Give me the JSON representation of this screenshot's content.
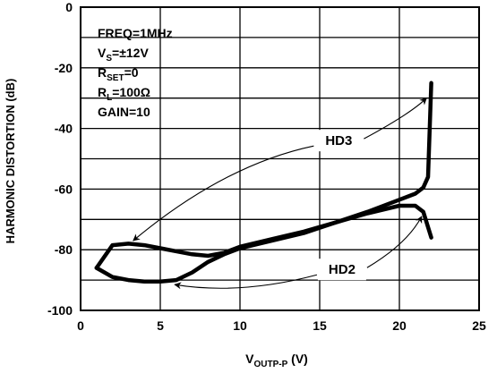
{
  "chart_data": {
    "type": "line",
    "ylabel": "HARMONIC DISTORTION (dB)",
    "xlabel": {
      "main": "V",
      "sub": "OUTP-P",
      "unit": " (V)"
    },
    "xlim": [
      0,
      25
    ],
    "ylim": [
      -100,
      0
    ],
    "xticks": [
      0,
      5,
      10,
      15,
      20,
      25
    ],
    "yticks": [
      0,
      -20,
      -40,
      -60,
      -80,
      -100
    ],
    "grid": true,
    "conditions": [
      {
        "main": "FREQ=1MHz"
      },
      {
        "main": "V",
        "sub": "S",
        "rest": "=±12V"
      },
      {
        "main": "R",
        "sub": "SET",
        "rest": "=0"
      },
      {
        "main": "R",
        "sub": "L",
        "rest": "=100Ω"
      },
      {
        "main": "GAIN=10"
      }
    ],
    "series": [
      {
        "name": "HD3",
        "points": [
          [
            1.0,
            -86.0
          ],
          [
            2.0,
            -78.5
          ],
          [
            3.0,
            -78.0
          ],
          [
            4.0,
            -78.5
          ],
          [
            5.0,
            -79.5
          ],
          [
            6.0,
            -80.5
          ],
          [
            7.0,
            -81.5
          ],
          [
            8.0,
            -82.0
          ],
          [
            9.0,
            -81.0
          ],
          [
            10.0,
            -79.0
          ],
          [
            12.0,
            -76.5
          ],
          [
            14.0,
            -74.0
          ],
          [
            16.0,
            -71.0
          ],
          [
            18.0,
            -67.5
          ],
          [
            20.0,
            -63.5
          ],
          [
            21.0,
            -61.5
          ],
          [
            21.5,
            -59.5
          ],
          [
            21.8,
            -56.0
          ],
          [
            22.0,
            -25.0
          ]
        ]
      },
      {
        "name": "HD2",
        "points": [
          [
            1.0,
            -86.0
          ],
          [
            2.0,
            -89.0
          ],
          [
            3.0,
            -90.0
          ],
          [
            4.0,
            -90.5
          ],
          [
            5.0,
            -90.5
          ],
          [
            6.0,
            -90.0
          ],
          [
            7.0,
            -87.5
          ],
          [
            8.0,
            -84.0
          ],
          [
            9.0,
            -81.5
          ],
          [
            10.0,
            -79.5
          ],
          [
            12.0,
            -77.0
          ],
          [
            14.0,
            -74.5
          ],
          [
            16.0,
            -71.0
          ],
          [
            18.0,
            -68.0
          ],
          [
            20.0,
            -65.5
          ],
          [
            21.0,
            -65.5
          ],
          [
            21.5,
            -67.5
          ],
          [
            22.0,
            -76.0
          ]
        ]
      }
    ],
    "annotations": [
      {
        "text": "HD3",
        "x": 16.2,
        "y": -44
      },
      {
        "text": "HD2",
        "x": 16.4,
        "y": -86.5
      }
    ]
  }
}
